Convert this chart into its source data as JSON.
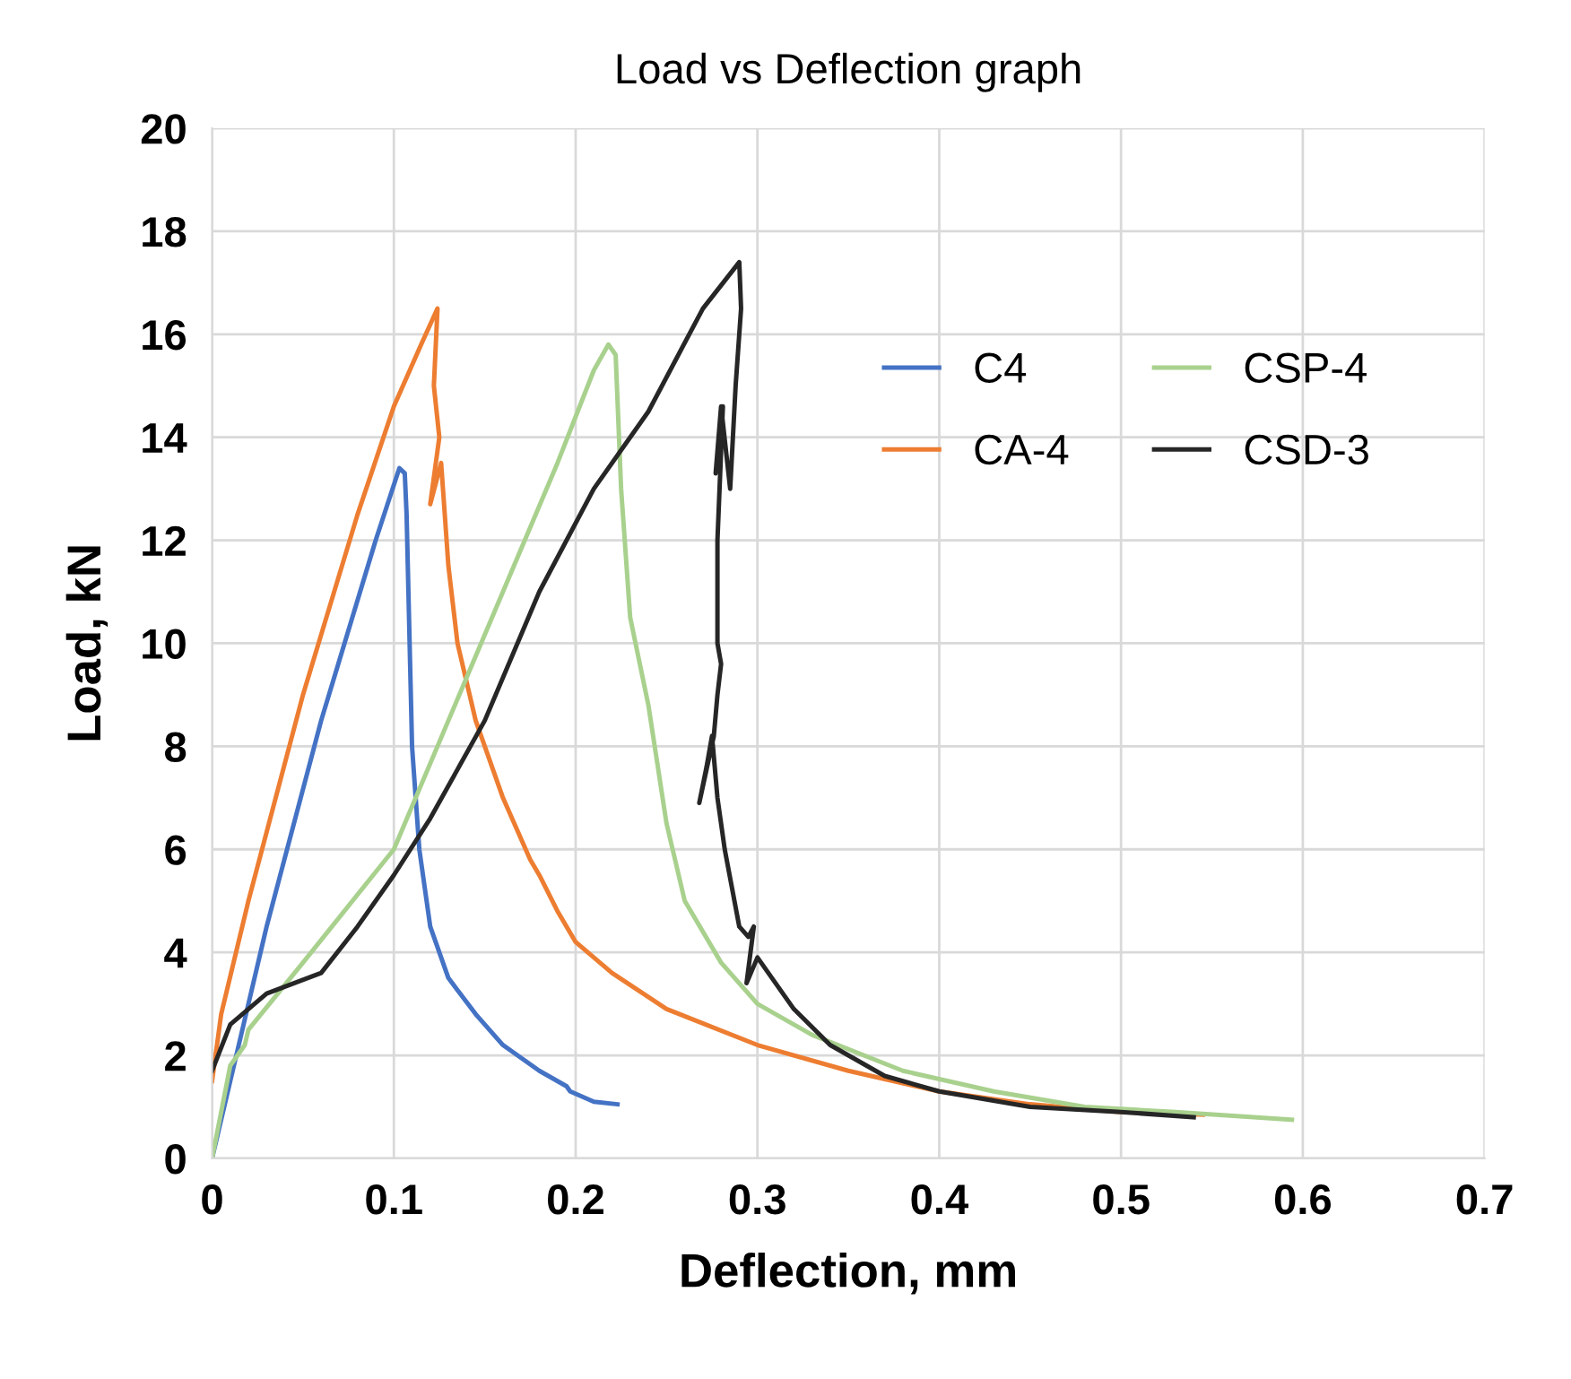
{
  "chart_data": {
    "type": "line",
    "title": "Load vs Deflection graph",
    "xlabel": "Deflection, mm",
    "ylabel": "Load, kN",
    "xlim": [
      0,
      0.7
    ],
    "xticks": [
      0,
      0.1,
      0.2,
      0.3,
      0.4,
      0.5,
      0.6,
      0.7
    ],
    "ylim": [
      0,
      20
    ],
    "yticks": [
      0,
      2,
      4,
      6,
      8,
      10,
      12,
      14,
      16,
      18,
      20
    ],
    "grid": true,
    "legend": "top right",
    "marker": "none",
    "line_style": "solid",
    "series": [
      {
        "name": "C4",
        "color": "#4472c4",
        "x": [
          0,
          0.01,
          0.03,
          0.06,
          0.09,
          0.103,
          0.106,
          0.107,
          0.108,
          0.11,
          0.114,
          0.12,
          0.13,
          0.145,
          0.16,
          0.18,
          0.195,
          0.197,
          0.21,
          0.223
        ],
        "values": [
          0,
          1.5,
          4.5,
          8.5,
          12,
          13.4,
          13.3,
          12.5,
          11,
          8,
          6,
          4.5,
          3.5,
          2.8,
          2.2,
          1.7,
          1.4,
          1.3,
          1.1,
          1.05
        ]
      },
      {
        "name": "CA-4",
        "color": "#ed7d31",
        "x": [
          0,
          0.005,
          0.02,
          0.05,
          0.08,
          0.1,
          0.115,
          0.124,
          0.122,
          0.125,
          0.12,
          0.126,
          0.13,
          0.135,
          0.145,
          0.16,
          0.175,
          0.18,
          0.19,
          0.2,
          0.22,
          0.25,
          0.3,
          0.35,
          0.4,
          0.45,
          0.5,
          0.545
        ],
        "values": [
          1.5,
          2.8,
          5,
          9,
          12.5,
          14.6,
          15.8,
          16.5,
          15,
          14,
          12.7,
          13.5,
          11.5,
          10,
          8.5,
          7,
          5.8,
          5.5,
          4.8,
          4.2,
          3.6,
          2.9,
          2.2,
          1.7,
          1.3,
          1.05,
          0.9,
          0.85
        ]
      },
      {
        "name": "CSP-4",
        "color": "#a9d18e",
        "x": [
          0,
          0.01,
          0.018,
          0.02,
          0.05,
          0.1,
          0.13,
          0.16,
          0.19,
          0.21,
          0.218,
          0.222,
          0.225,
          0.23,
          0.24,
          0.25,
          0.26,
          0.28,
          0.3,
          0.33,
          0.38,
          0.43,
          0.48,
          0.53,
          0.594
        ],
        "values": [
          0,
          1.8,
          2.2,
          2.5,
          3.8,
          6,
          8.5,
          11,
          13.5,
          15.3,
          15.8,
          15.6,
          13,
          10.5,
          8.8,
          6.5,
          5,
          3.8,
          3,
          2.4,
          1.7,
          1.3,
          1,
          0.9,
          0.75
        ]
      },
      {
        "name": "CSD-3",
        "color": "#262626",
        "x": [
          0,
          0.01,
          0.03,
          0.06,
          0.08,
          0.1,
          0.12,
          0.15,
          0.18,
          0.21,
          0.24,
          0.27,
          0.29,
          0.291,
          0.288,
          0.285,
          0.28,
          0.277,
          0.281,
          0.278,
          0.278,
          0.28,
          0.278,
          0.276,
          0.268,
          0.272,
          0.275,
          0.278,
          0.282,
          0.29,
          0.295,
          0.298,
          0.294,
          0.3,
          0.32,
          0.34,
          0.37,
          0.4,
          0.45,
          0.5,
          0.54
        ],
        "values": [
          1.7,
          2.6,
          3.2,
          3.6,
          4.5,
          5.5,
          6.6,
          8.5,
          11,
          13,
          14.5,
          16.5,
          17.4,
          16.5,
          15,
          13,
          14.6,
          13.3,
          14.6,
          12,
          10,
          9.6,
          9,
          8.2,
          6.9,
          7.6,
          8.2,
          7,
          6,
          4.5,
          4.3,
          4.5,
          3.4,
          3.9,
          2.9,
          2.2,
          1.6,
          1.3,
          1,
          0.9,
          0.8
        ]
      }
    ]
  }
}
